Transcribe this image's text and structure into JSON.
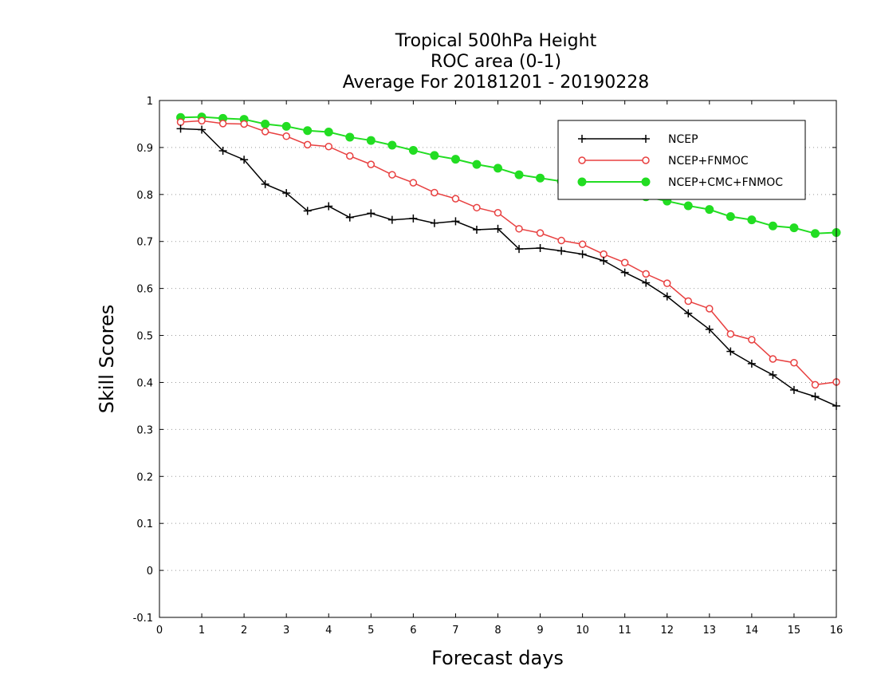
{
  "chart_data": {
    "type": "line",
    "title_lines": [
      "Tropical 500hPa Height",
      "ROC area (0-1)",
      "Average For 20181201 - 20190228"
    ],
    "xlabel": "Forecast days",
    "ylabel": "Skill Scores",
    "xlim": [
      0,
      16
    ],
    "ylim": [
      -0.1,
      1
    ],
    "xticks": [
      "0",
      "1",
      "2",
      "3",
      "4",
      "5",
      "6",
      "7",
      "8",
      "9",
      "10",
      "11",
      "12",
      "13",
      "14",
      "15",
      "16"
    ],
    "yticks": [
      "-0.1",
      "0",
      "0.1",
      "0.2",
      "0.3",
      "0.4",
      "0.5",
      "0.6",
      "0.7",
      "0.8",
      "0.9",
      "1"
    ],
    "grid": "horizontal dotted",
    "legend_position": "top-right",
    "x": [
      0.5,
      1,
      1.5,
      2,
      2.5,
      3,
      3.5,
      4,
      4.5,
      5,
      5.5,
      6,
      6.5,
      7,
      7.5,
      8,
      8.5,
      9,
      9.5,
      10,
      10.5,
      11,
      11.5,
      12,
      12.5,
      13,
      13.5,
      14,
      14.5,
      15,
      15.5,
      16
    ],
    "series": [
      {
        "name": "NCEP",
        "color": "#000000",
        "marker": "plus",
        "values": [
          0.94,
          0.938,
          0.893,
          0.874,
          0.822,
          0.803,
          0.765,
          0.775,
          0.751,
          0.76,
          0.746,
          0.749,
          0.739,
          0.743,
          0.725,
          0.727,
          0.684,
          0.686,
          0.68,
          0.673,
          0.659,
          0.634,
          0.612,
          0.583,
          0.547,
          0.513,
          0.466,
          0.44,
          0.416,
          0.384,
          0.37,
          0.35
        ]
      },
      {
        "name": "NCEP+FNMOC",
        "color": "#e84040",
        "marker": "open-circle",
        "values": [
          0.954,
          0.957,
          0.951,
          0.95,
          0.934,
          0.924,
          0.906,
          0.902,
          0.882,
          0.864,
          0.842,
          0.825,
          0.804,
          0.791,
          0.772,
          0.761,
          0.727,
          0.718,
          0.702,
          0.694,
          0.673,
          0.655,
          0.631,
          0.611,
          0.573,
          0.557,
          0.503,
          0.491,
          0.45,
          0.442,
          0.395,
          0.401
        ]
      },
      {
        "name": "NCEP+CMC+FNMOC",
        "color": "#22dd22",
        "marker": "filled-circle",
        "values": [
          0.964,
          0.965,
          0.962,
          0.96,
          0.95,
          0.945,
          0.936,
          0.933,
          0.922,
          0.915,
          0.905,
          0.894,
          0.883,
          0.875,
          0.864,
          0.856,
          0.842,
          0.835,
          0.828,
          0.82,
          0.812,
          0.803,
          0.795,
          0.786,
          0.776,
          0.768,
          0.753,
          0.746,
          0.733,
          0.729,
          0.717,
          0.719
        ]
      }
    ]
  }
}
